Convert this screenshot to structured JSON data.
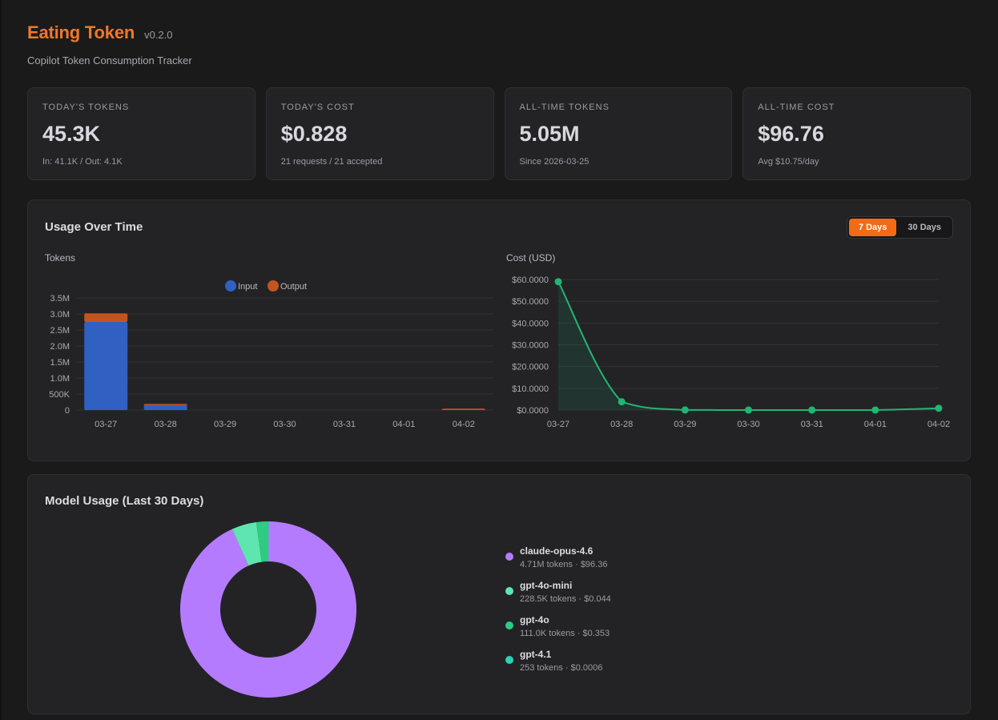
{
  "header": {
    "title": "Eating Token",
    "version": "v0.2.0",
    "subtitle": "Copilot Token Consumption Tracker"
  },
  "stats": [
    {
      "label": "TODAY'S TOKENS",
      "value": "45.3K",
      "sub": "In: 41.1K / Out: 4.1K"
    },
    {
      "label": "TODAY'S COST",
      "value": "$0.828",
      "sub": "21 requests / 21 accepted"
    },
    {
      "label": "ALL-TIME TOKENS",
      "value": "5.05M",
      "sub": "Since 2026-03-25"
    },
    {
      "label": "ALL-TIME COST",
      "value": "$96.76",
      "sub": "Avg $10.75/day"
    }
  ],
  "usage": {
    "title": "Usage Over Time",
    "range_options": [
      {
        "label": "7 Days",
        "active": true
      },
      {
        "label": "30 Days",
        "active": false
      }
    ]
  },
  "chart_data": [
    {
      "type": "bar",
      "stacked": true,
      "title": "Tokens",
      "categories": [
        "03-27",
        "03-28",
        "03-29",
        "03-30",
        "03-31",
        "04-01",
        "04-02"
      ],
      "series": [
        {
          "name": "Input",
          "color": "#3061c2",
          "values": [
            2750000,
            170000,
            0,
            0,
            0,
            0,
            41100
          ]
        },
        {
          "name": "Output",
          "color": "#c4541f",
          "values": [
            270000,
            20000,
            0,
            0,
            0,
            0,
            4100
          ]
        }
      ],
      "yticks": [
        "0",
        "500K",
        "1.0M",
        "1.5M",
        "2.0M",
        "2.5M",
        "3.0M",
        "3.5M"
      ],
      "ylim": [
        0,
        3500000
      ],
      "legend": "top",
      "grid": true
    },
    {
      "type": "area",
      "title": "Cost (USD)",
      "categories": [
        "03-27",
        "03-28",
        "03-29",
        "03-30",
        "03-31",
        "04-01",
        "04-02"
      ],
      "series": [
        {
          "color": "#22b573",
          "values": [
            59.0,
            3.8,
            0.03,
            0.02,
            0.01,
            0.02,
            0.83
          ]
        }
      ],
      "yticks": [
        "$0.0000",
        "$10.0000",
        "$20.0000",
        "$30.0000",
        "$40.0000",
        "$50.0000",
        "$60.0000"
      ],
      "ylim": [
        0,
        60
      ],
      "grid": true
    },
    {
      "type": "pie",
      "donut": true,
      "title": "Model Usage (Last 30 Days)",
      "slices": [
        {
          "name": "claude-opus-4.6",
          "value": 4710000,
          "color": "#b57bff",
          "detail": "4.71M tokens · $96.36"
        },
        {
          "name": "gpt-4o-mini",
          "value": 228500,
          "color": "#5fe6b0",
          "detail": "228.5K tokens · $0.044"
        },
        {
          "name": "gpt-4o",
          "value": 111000,
          "color": "#2ecc80",
          "detail": "111.0K tokens · $0.353"
        },
        {
          "name": "gpt-4.1",
          "value": 253,
          "color": "#2ad3b4",
          "detail": "253 tokens · $0.0006"
        }
      ]
    }
  ]
}
